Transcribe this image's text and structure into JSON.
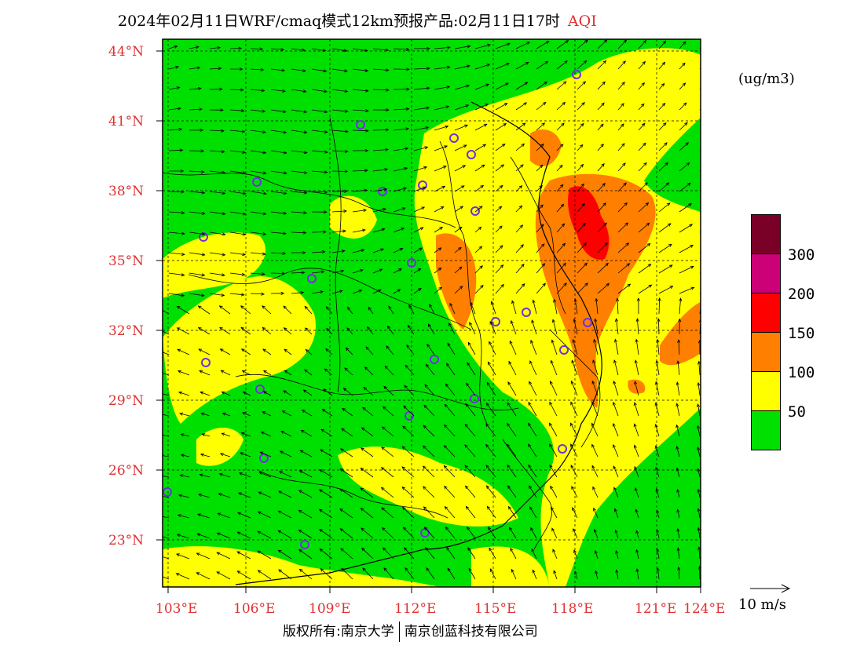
{
  "title": {
    "main": "2024年02月11日WRF/cmaq模式12km预报产品:02月11日17时",
    "variable": "AQI"
  },
  "units": "(ug/m3)",
  "legend": {
    "levels": [
      {
        "label": "300",
        "color": "#7a0028"
      },
      {
        "label": "200",
        "color": "#cc0077"
      },
      {
        "label": "150",
        "color": "#ff0000"
      },
      {
        "label": "100",
        "color": "#ff7f00"
      },
      {
        "label": "50",
        "color": "#ffff00"
      },
      {
        "label": "",
        "color": "#00e000"
      }
    ]
  },
  "wind_reference": {
    "text": "10 m/s",
    "icon": "reference-wind-arrow-icon"
  },
  "latitudes": [
    "44°N",
    "41°N",
    "38°N",
    "35°N",
    "32°N",
    "29°N",
    "26°N",
    "23°N"
  ],
  "longitudes": [
    "103°E",
    "106°E",
    "109°E",
    "112°E",
    "115°E",
    "118°E",
    "121°E",
    "124°E"
  ],
  "copyright": {
    "left": "版权所有:南京大学",
    "right": "南京创蓝科技有限公司"
  },
  "colors": {
    "good": "#00e000",
    "moderate": "#ffff00",
    "sensitive": "#ff7f00",
    "unhealthy": "#ff0000",
    "axis_label": "#e03030"
  }
}
